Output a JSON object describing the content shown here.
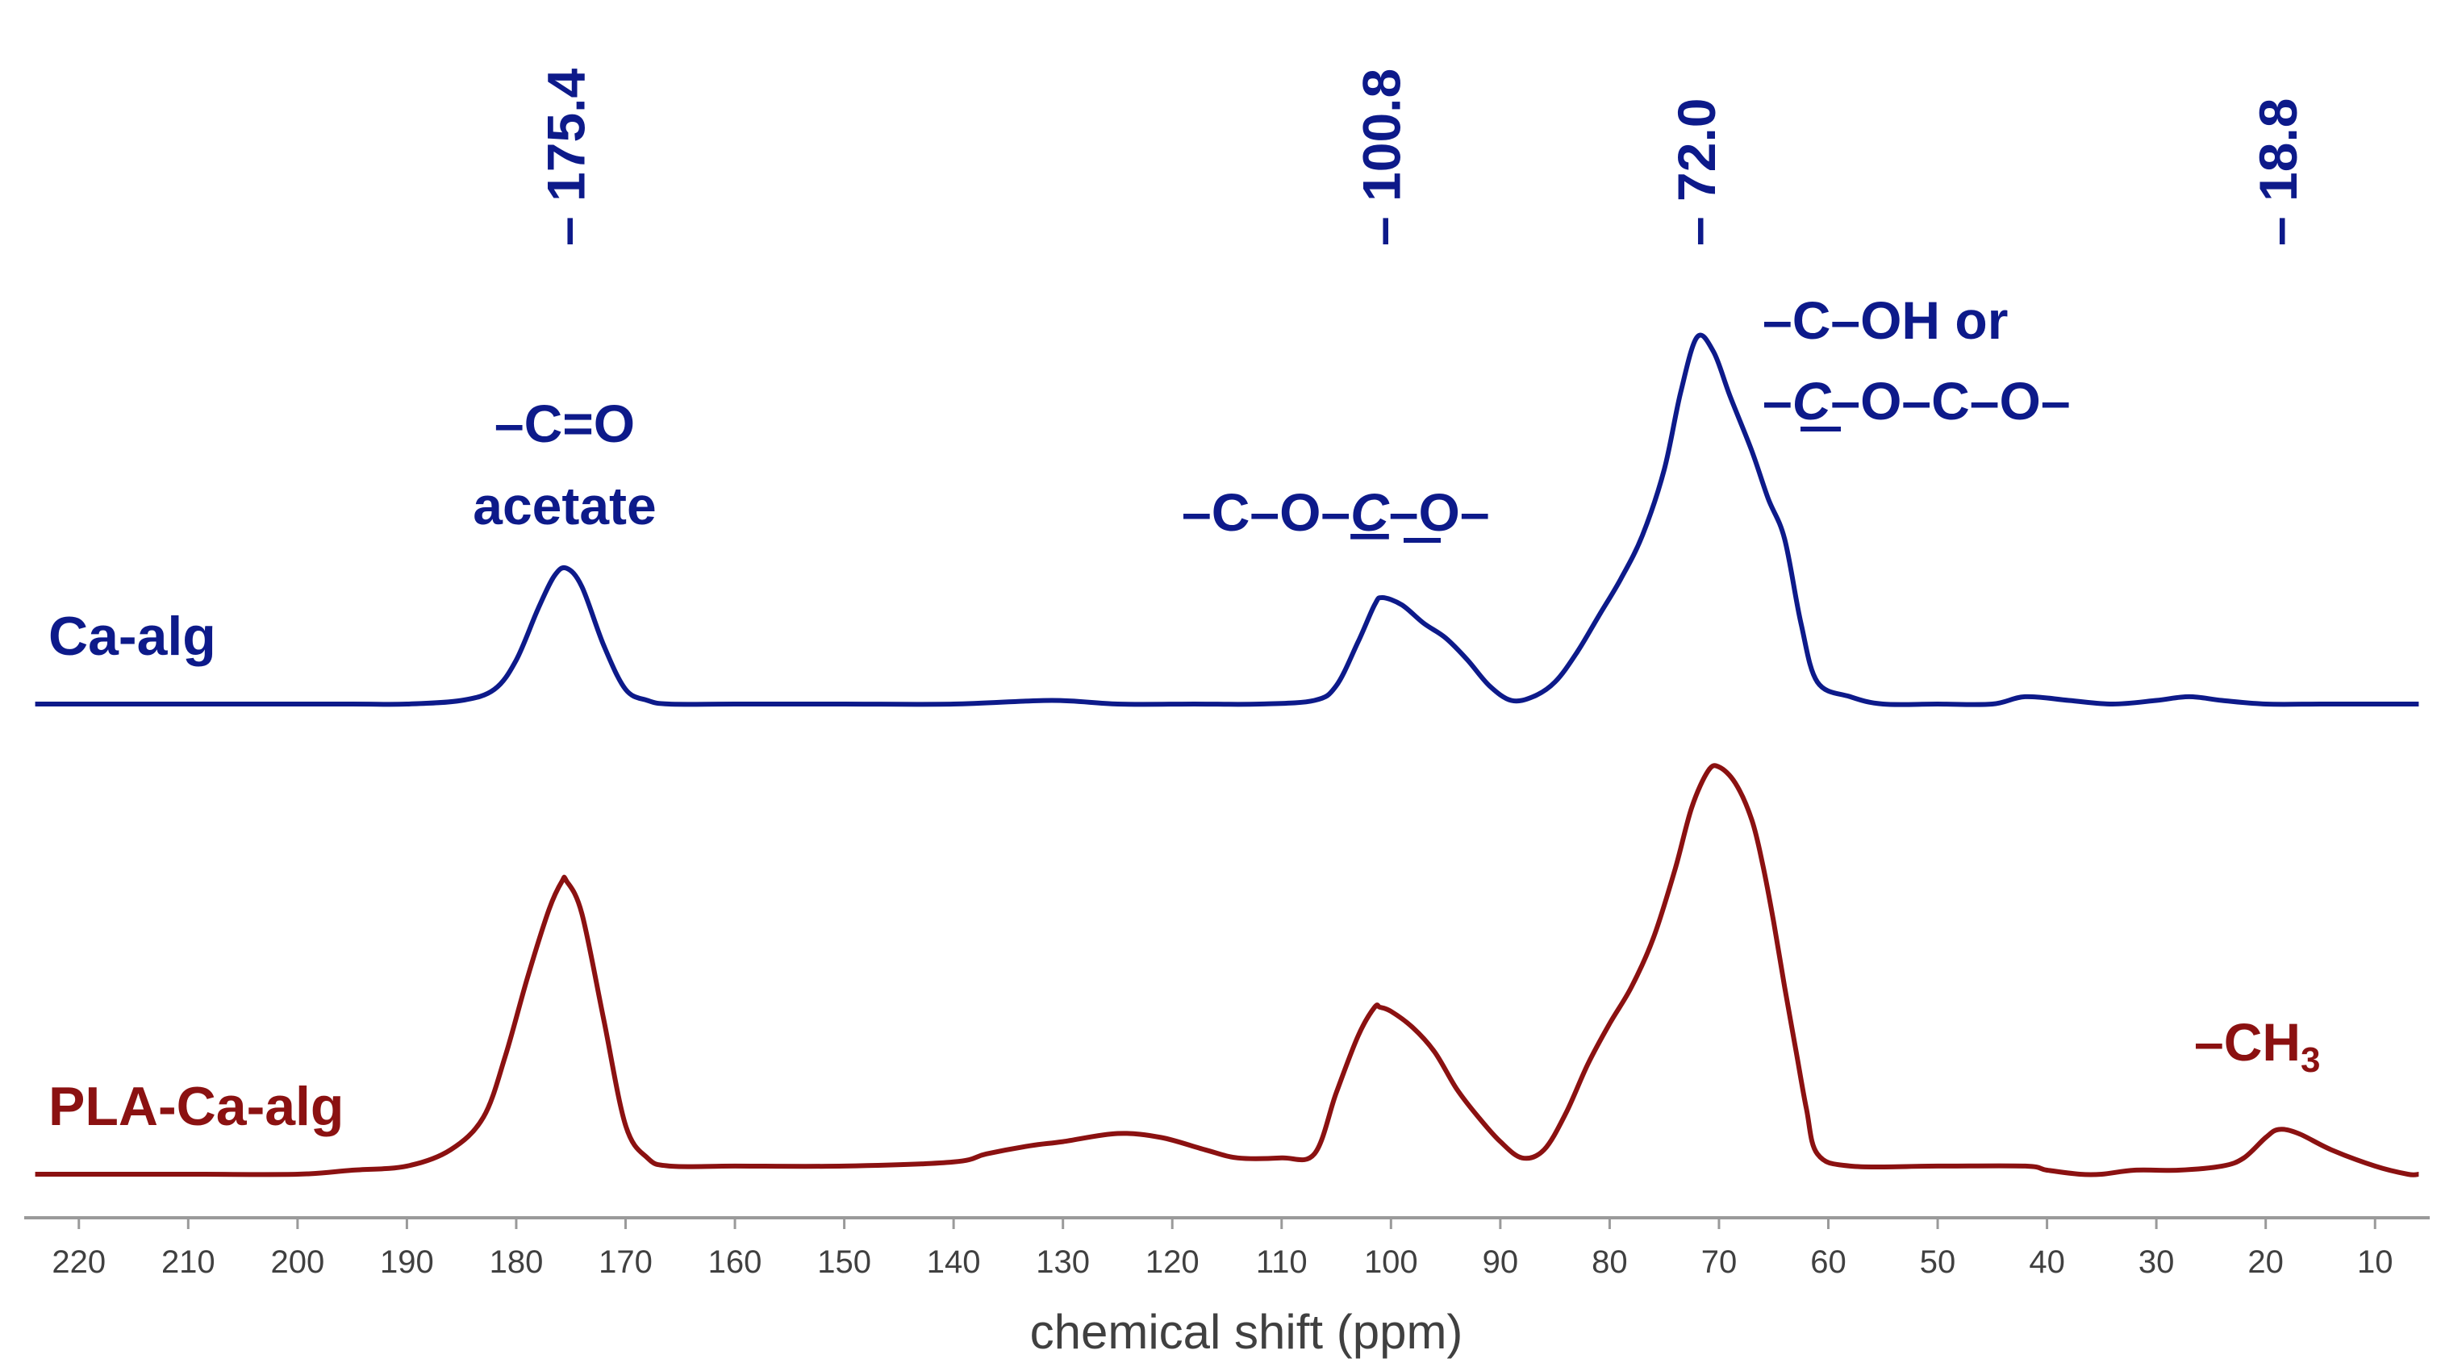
{
  "chart_data": {
    "type": "line",
    "xlabel": "chemical shift (ppm)",
    "x_reversed": true,
    "xlim": [
      225,
      5
    ],
    "x_ticks": [
      220,
      210,
      200,
      190,
      180,
      170,
      160,
      150,
      140,
      130,
      120,
      110,
      100,
      90,
      80,
      70,
      60,
      50,
      40,
      30,
      20,
      10
    ],
    "y_axis_visible": false,
    "grid": false,
    "legend": "inline-left",
    "peak_markers": [
      {
        "ppm": 175.4,
        "label": "– 175.4"
      },
      {
        "ppm": 100.8,
        "label": "– 100.8"
      },
      {
        "ppm": 72.0,
        "label": "– 72.0"
      },
      {
        "ppm": 18.8,
        "label": "– 18.8"
      }
    ],
    "series": [
      {
        "name": "Ca-alg",
        "color": "#0d1a8a",
        "x": [
          224,
          215,
          205,
          195,
          190,
          185,
          182,
          180,
          178,
          176.5,
          175.4,
          174,
          172,
          170,
          168,
          166,
          160,
          150,
          140,
          131,
          125,
          118,
          112,
          107,
          105,
          103,
          101.5,
          100.8,
          99,
          97,
          95,
          93,
          91,
          89,
          87,
          85,
          83,
          81,
          79,
          77,
          75,
          73.5,
          72,
          70.5,
          69,
          67,
          65.5,
          64,
          62.5,
          61,
          58,
          55,
          50,
          45,
          42,
          38,
          34,
          30,
          27,
          24,
          20,
          15,
          10,
          6
        ],
        "y": [
          0.0,
          0.0,
          0.0,
          0.0,
          0.0,
          0.01,
          0.04,
          0.12,
          0.26,
          0.35,
          0.37,
          0.32,
          0.16,
          0.04,
          0.01,
          0.0,
          0.0,
          0.0,
          0.0,
          0.01,
          0.0,
          0.0,
          0.0,
          0.01,
          0.05,
          0.17,
          0.27,
          0.29,
          0.27,
          0.22,
          0.18,
          0.12,
          0.05,
          0.01,
          0.02,
          0.06,
          0.14,
          0.24,
          0.34,
          0.46,
          0.64,
          0.85,
          1.0,
          0.96,
          0.84,
          0.69,
          0.56,
          0.45,
          0.22,
          0.06,
          0.02,
          0.0,
          0.0,
          0.0,
          0.02,
          0.01,
          0.0,
          0.01,
          0.02,
          0.01,
          0.0,
          0.0,
          0.0,
          0.0
        ]
      },
      {
        "name": "PLA-Ca-alg",
        "color": "#8b1111",
        "x": [
          224,
          210,
          200,
          195,
          190,
          186,
          183,
          181,
          179,
          177,
          175.8,
          175.4,
          174,
          172,
          170,
          168,
          166,
          160,
          150,
          140,
          137,
          133,
          130,
          125,
          121,
          117,
          114,
          110,
          107,
          105,
          103,
          101.5,
          101,
          100,
          98,
          96,
          94,
          92,
          90,
          88,
          86,
          84,
          82,
          80,
          78,
          76,
          74,
          72.5,
          71,
          70,
          68.5,
          67,
          66,
          65,
          64,
          63,
          62,
          61,
          58,
          50,
          42,
          40,
          37,
          35,
          32,
          28,
          24,
          22,
          20,
          18.8,
          17,
          14,
          10,
          7,
          6
        ],
        "y": [
          0.0,
          0.0,
          0.0,
          0.01,
          0.02,
          0.06,
          0.14,
          0.29,
          0.48,
          0.65,
          0.72,
          0.72,
          0.64,
          0.38,
          0.12,
          0.04,
          0.02,
          0.02,
          0.02,
          0.03,
          0.05,
          0.07,
          0.08,
          0.1,
          0.09,
          0.06,
          0.04,
          0.04,
          0.05,
          0.2,
          0.34,
          0.41,
          0.41,
          0.4,
          0.36,
          0.3,
          0.21,
          0.14,
          0.08,
          0.04,
          0.06,
          0.15,
          0.27,
          0.37,
          0.46,
          0.58,
          0.75,
          0.9,
          0.99,
          1.0,
          0.96,
          0.87,
          0.76,
          0.62,
          0.46,
          0.31,
          0.16,
          0.05,
          0.02,
          0.02,
          0.02,
          0.01,
          0.0,
          0.0,
          0.01,
          0.01,
          0.02,
          0.04,
          0.09,
          0.11,
          0.1,
          0.06,
          0.02,
          0.0,
          0.0
        ]
      }
    ],
    "annotations": [
      {
        "key": "carbonyl",
        "lines": [
          "–C=O",
          "acetate"
        ],
        "ppm": 175.4,
        "series": "Ca-alg"
      },
      {
        "key": "acetal",
        "text_before": "–C–O–",
        "text_emph": "C",
        "text_after": "–O–",
        "ppm": 100.8,
        "series": "Ca-alg"
      },
      {
        "key": "hydroxyl",
        "line1": "–C–OH or",
        "line2_before": "–",
        "line2_emph": "C",
        "line2_after": "–O–C–O–",
        "ppm": 72.0,
        "series": "Ca-alg"
      },
      {
        "key": "methyl",
        "text_main": "–CH",
        "text_sub": "3",
        "ppm": 18.8,
        "series": "PLA-Ca-alg"
      }
    ]
  }
}
